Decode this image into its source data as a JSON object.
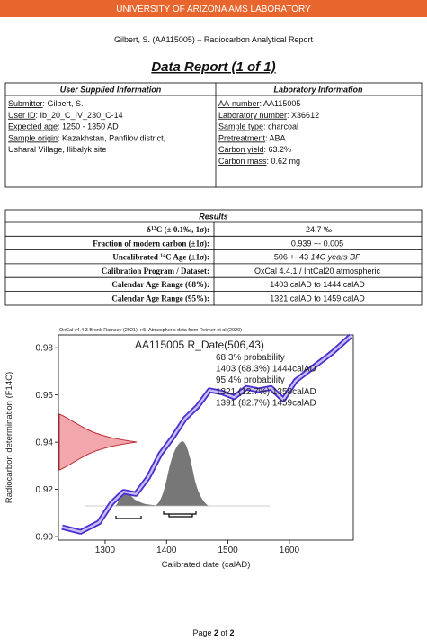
{
  "header": {
    "banner": "UNIVERSITY OF ARIZONA AMS LABORATORY",
    "report_line": "Gilbert, S. (AA115005) – Radiocarbon Analytical Report",
    "title": "Data Report (1 of 1)"
  },
  "info_table": {
    "left_heading": "User Supplied Information",
    "right_heading": "Laboratory Information",
    "left": [
      {
        "label": "Submitter",
        "value": ":  Gilbert, S."
      },
      {
        "label": "User ID",
        "value": ":  Ib_20_C_IV_230_C-14"
      },
      {
        "label": "Expected age",
        "value": ":  1250 - 1350 AD"
      },
      {
        "label": "Sample origin",
        "value": ":  Kazakhstan, Panfilov district,"
      }
    ],
    "left_continuation": "Usharal Village, Ilibalyk site",
    "right": [
      {
        "label": "AA-number",
        "value": ":  AA115005"
      },
      {
        "label": "Laboratory number",
        "value": ":  X36612"
      },
      {
        "label": "Sample type",
        "value": ":  charcoal"
      },
      {
        "label": "Pretreatment",
        "value": ":  ABA"
      },
      {
        "label": "Carbon yield",
        "value": ":  63.2%"
      },
      {
        "label": "Carbon mass",
        "value": ":  0.62 mg"
      }
    ]
  },
  "results": {
    "heading": "Results",
    "rows": [
      {
        "label": [
          {
            "text": "δ"
          },
          {
            "text": "13",
            "sup": true
          },
          {
            "text": "C (± 0.1‰, 1σ):"
          }
        ],
        "value": [
          {
            "text": "-24.7 ‰"
          }
        ]
      },
      {
        "label": [
          {
            "text": "Fraction of modern carbon (±1σ):"
          }
        ],
        "value": [
          {
            "text": "0.939 +- 0.005"
          }
        ]
      },
      {
        "label": [
          {
            "text": "Uncalibrated "
          },
          {
            "text": "14",
            "sup": true
          },
          {
            "text": "C Age (±1σ):"
          }
        ],
        "value": [
          {
            "text": "506 +- 43 "
          },
          {
            "text": "14C years BP",
            "italic": true
          }
        ]
      },
      {
        "label": [
          {
            "text": "Calibration Program / Dataset:"
          }
        ],
        "value": [
          {
            "text": "OxCal 4.4.1 / IntCal20 atmospheric"
          }
        ]
      },
      {
        "label": [
          {
            "text": "Calendar Age Range (68%):"
          }
        ],
        "value": [
          {
            "text": "1403 calAD to 1444 calAD"
          }
        ]
      },
      {
        "label": [
          {
            "text": "Calendar Age Range (95%):"
          }
        ],
        "value": [
          {
            "text": "1321 calAD to 1459 calAD"
          }
        ]
      }
    ]
  },
  "figure": {
    "caption": "OxCal v4.4.3 Bronk Ramsey (2021); r:5. Atmospheric data from Reimer et al (2020)",
    "name": "AA115005 R_Date(506,43)",
    "texts": [
      "68.3% probability",
      "1403 (68.3%) 1444calAD",
      "95.4% probability",
      "1321 (12.7%) 1358calAD",
      "1391 (82.7%) 1459calAD"
    ],
    "ylabel": "Radiocarbon determination (F14C)",
    "xlabel": "Calibrated date (calAD)",
    "xlim": [
      1224,
      1704
    ],
    "ylim": [
      0.8985,
      0.9854
    ],
    "xticks": [
      1300,
      1400,
      1500,
      1600
    ],
    "yticks": [
      {
        "value": 0.9,
        "label": "0.90"
      },
      0.92,
      0.94,
      0.96,
      0.98
    ],
    "curve": {
      "x": [
        1230,
        1260,
        1290,
        1310,
        1330,
        1350,
        1370,
        1390,
        1410,
        1430,
        1450,
        1470,
        1490,
        1510,
        1530,
        1550,
        1570,
        1590,
        1610,
        1630,
        1650,
        1670,
        1700
      ],
      "y": [
        0.904,
        0.902,
        0.906,
        0.914,
        0.919,
        0.918,
        0.925,
        0.935,
        0.942,
        0.95,
        0.955,
        0.962,
        0.961,
        0.959,
        0.963,
        0.962,
        0.963,
        0.958,
        0.966,
        0.97,
        0.974,
        0.978,
        0.985
      ]
    }
  },
  "footer": [
    {
      "text": "Page "
    },
    {
      "text": "2",
      "bold": true
    },
    {
      "text": " of "
    },
    {
      "text": "2",
      "bold": true
    }
  ]
}
